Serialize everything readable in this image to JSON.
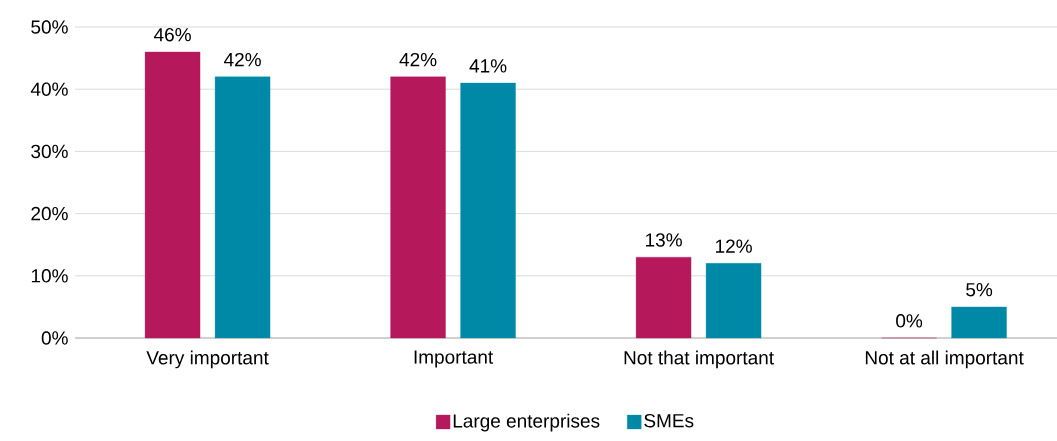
{
  "chart_data": {
    "type": "bar",
    "categories": [
      "Very important",
      "Important",
      "Not that important",
      "Not at all important"
    ],
    "series": [
      {
        "name": "Large enterprises",
        "color": "#b5195b",
        "values": [
          46,
          42,
          13,
          0
        ],
        "value_labels": [
          "46%",
          "42%",
          "13%",
          "0%"
        ]
      },
      {
        "name": "SMEs",
        "color": "#0089a7",
        "values": [
          42,
          41,
          12,
          5
        ],
        "value_labels": [
          "42%",
          "41%",
          "12%",
          "5%"
        ]
      }
    ],
    "ylim": [
      0,
      50
    ],
    "yticks": [
      {
        "value": 0,
        "label": "0%"
      },
      {
        "value": 10,
        "label": "10%"
      },
      {
        "value": 20,
        "label": "20%"
      },
      {
        "value": 30,
        "label": "30%"
      },
      {
        "value": 40,
        "label": "40%"
      },
      {
        "value": 50,
        "label": "50%"
      }
    ],
    "grid": "y",
    "legend": "bottom"
  }
}
